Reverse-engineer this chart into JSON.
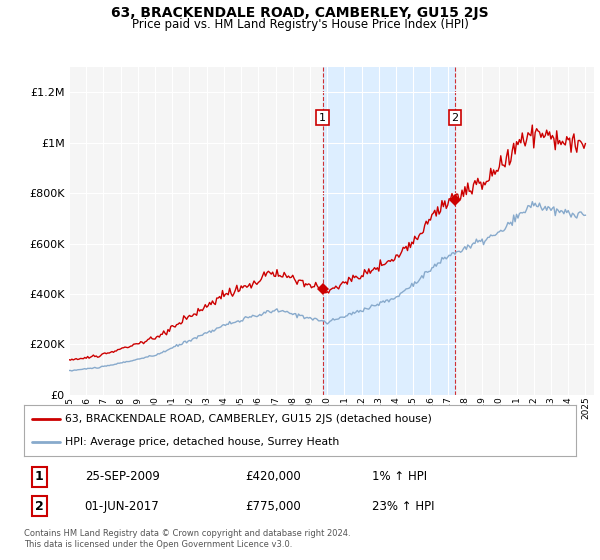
{
  "title": "63, BRACKENDALE ROAD, CAMBERLEY, GU15 2JS",
  "subtitle": "Price paid vs. HM Land Registry's House Price Index (HPI)",
  "legend_line1": "63, BRACKENDALE ROAD, CAMBERLEY, GU15 2JS (detached house)",
  "legend_line2": "HPI: Average price, detached house, Surrey Heath",
  "transaction1_date": "25-SEP-2009",
  "transaction1_price": "£420,000",
  "transaction1_hpi": "1% ↑ HPI",
  "transaction2_date": "01-JUN-2017",
  "transaction2_price": "£775,000",
  "transaction2_hpi": "23% ↑ HPI",
  "footer": "Contains HM Land Registry data © Crown copyright and database right 2024.\nThis data is licensed under the Open Government Licence v3.0.",
  "line_color_red": "#cc0000",
  "line_color_blue": "#88aacc",
  "background_color": "#ffffff",
  "plot_bg_color": "#f5f5f5",
  "shaded_color": "#ddeeff",
  "grid_color": "#ffffff",
  "ylim": [
    0,
    1300000
  ],
  "yticks": [
    0,
    200000,
    400000,
    600000,
    800000,
    1000000,
    1200000
  ],
  "ytick_labels": [
    "£0",
    "£200K",
    "£400K",
    "£600K",
    "£800K",
    "£1M",
    "£1.2M"
  ],
  "transaction1_x": 2009.73,
  "transaction2_x": 2017.42,
  "transaction1_y": 420000,
  "transaction2_y": 775000,
  "xlim_left": 1995,
  "xlim_right": 2025.5
}
